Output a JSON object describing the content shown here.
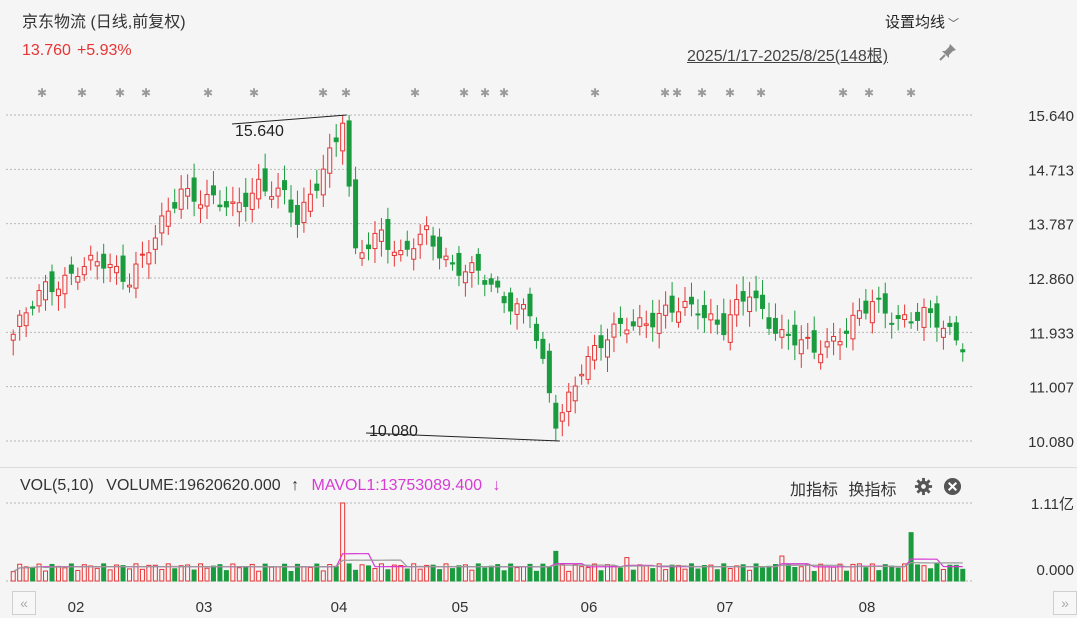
{
  "header": {
    "title": "京东物流 (日线,前复权)",
    "price": "13.760",
    "change": "+5.93%",
    "settings_label": "设置均线",
    "range_label": "2025/1/17-2025/8/25(148根)"
  },
  "colors": {
    "up": "#e63434",
    "down": "#1a9c3e",
    "mavol1": "#d63bd6",
    "mavol2": "#9a9a9a"
  },
  "chart_data": {
    "type": "candlestick",
    "y_ticks": [
      "15.640",
      "14.713",
      "13.787",
      "12.860",
      "11.933",
      "11.007",
      "10.080"
    ],
    "ylim": [
      10.08,
      15.64
    ],
    "high_annotation": "15.640",
    "low_annotation": "10.080",
    "x_labels": [
      "02",
      "03",
      "04",
      "05",
      "06",
      "07",
      "08"
    ],
    "session_count": 148,
    "volume_ticks": [
      "1.11亿",
      "0.000"
    ]
  },
  "volume_panel": {
    "name": "VOL(5,10)",
    "volume_label": "VOLUME:19620620.000",
    "volume_arrow": "↑",
    "mavol_label": "MAVOL1:13753089.400",
    "mavol_arrow": "↓",
    "add_indicator": "加指标",
    "switch_indicator": "换指标"
  },
  "icons": {
    "pin": "pin-icon",
    "gear": "gear-icon",
    "close": "close-icon",
    "nav_left": "double-chevron-left-icon",
    "nav_right": "double-chevron-right-icon"
  }
}
